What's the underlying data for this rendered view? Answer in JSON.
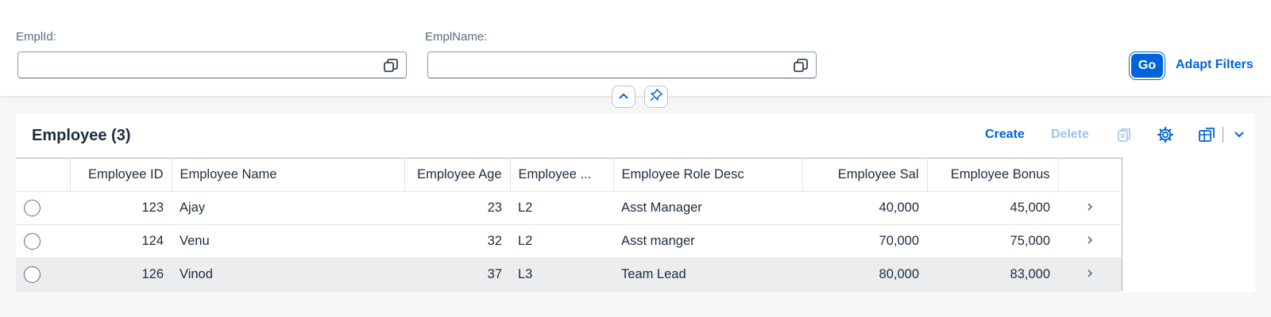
{
  "filters": {
    "empl_id_label": "EmplId:",
    "empl_id_value": "",
    "empl_name_label": "EmplName:",
    "empl_name_value": "",
    "go_label": "Go",
    "adapt_label": "Adapt Filters"
  },
  "table_panel": {
    "title": "Employee (3)",
    "create_label": "Create",
    "delete_label": "Delete"
  },
  "table": {
    "columns": [
      "Employee ID",
      "Employee Name",
      "Employee Age",
      "Employee ...",
      "Employee Role Desc",
      "Employee Sal",
      "Employee Bonus"
    ],
    "rows": [
      {
        "id": "123",
        "name": "Ajay",
        "age": "23",
        "level": "L2",
        "role": "Asst Manager",
        "sal": "40,000",
        "bonus": "45,000"
      },
      {
        "id": "124",
        "name": "Venu",
        "age": "32",
        "level": "L2",
        "role": "Asst manger",
        "sal": "70,000",
        "bonus": "75,000"
      },
      {
        "id": "126",
        "name": "Vinod",
        "age": "37",
        "level": "L3",
        "role": "Team Lead",
        "sal": "80,000",
        "bonus": "83,000"
      }
    ]
  },
  "colors": {
    "accent": "#0064d9",
    "disabled": "#9ec3f0",
    "text": "#1d2d3e"
  }
}
